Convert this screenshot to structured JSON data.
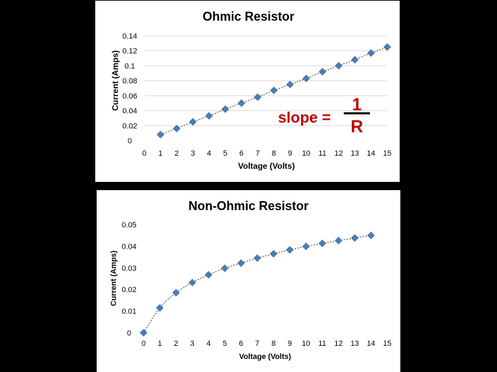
{
  "colors": {
    "background": "#000000",
    "panel": "#ffffff",
    "marker": "#4a7ebb",
    "grid": "#d9d9d9",
    "slope_text": "#c00000"
  },
  "slope_annotation": {
    "label": "slope =",
    "numerator": "1",
    "denominator": "R"
  },
  "chart_data": [
    {
      "type": "line",
      "title": "Ohmic Resistor",
      "xlabel": "Voltage (Volts)",
      "ylabel": "Current (Amps)",
      "xlim": [
        0,
        15
      ],
      "ylim": [
        0,
        0.14
      ],
      "grid": true,
      "xticks": [
        "0",
        "1",
        "2",
        "3",
        "4",
        "5",
        "6",
        "7",
        "8",
        "9",
        "10",
        "11",
        "12",
        "13",
        "14",
        "15"
      ],
      "yticks": [
        "0",
        "0.02",
        "0.04",
        "0.06",
        "0.08",
        "0.1",
        "0.12",
        "0.14"
      ],
      "x": [
        1,
        2,
        3,
        4,
        5,
        6,
        7,
        8,
        9,
        10,
        11,
        12,
        13,
        14,
        15
      ],
      "y": [
        0.008,
        0.016,
        0.025,
        0.033,
        0.042,
        0.05,
        0.058,
        0.067,
        0.075,
        0.083,
        0.092,
        0.1,
        0.108,
        0.117,
        0.125
      ],
      "marker": "diamond",
      "line_style": "dotted"
    },
    {
      "type": "line",
      "title": "Non-Ohmic Resistor",
      "xlabel": "Voltage (Volts)",
      "ylabel": "Current (Amps)",
      "xlim": [
        0,
        15
      ],
      "ylim": [
        0,
        0.05
      ],
      "grid": false,
      "xticks": [
        "0",
        "1",
        "2",
        "3",
        "4",
        "5",
        "6",
        "7",
        "8",
        "9",
        "10",
        "11",
        "12",
        "13",
        "14",
        "15"
      ],
      "yticks": [
        "0",
        "0.01",
        "0.02",
        "0.03",
        "0.04",
        "0.05"
      ],
      "x": [
        0,
        1,
        2,
        3,
        4,
        5,
        6,
        7,
        8,
        9,
        10,
        11,
        12,
        13,
        14
      ],
      "y": [
        0.0,
        0.0115,
        0.0185,
        0.0232,
        0.0268,
        0.0298,
        0.0322,
        0.0345,
        0.0365,
        0.0383,
        0.0399,
        0.0413,
        0.0426,
        0.0438,
        0.045
      ],
      "marker": "diamond",
      "line_style": "dotted"
    }
  ]
}
